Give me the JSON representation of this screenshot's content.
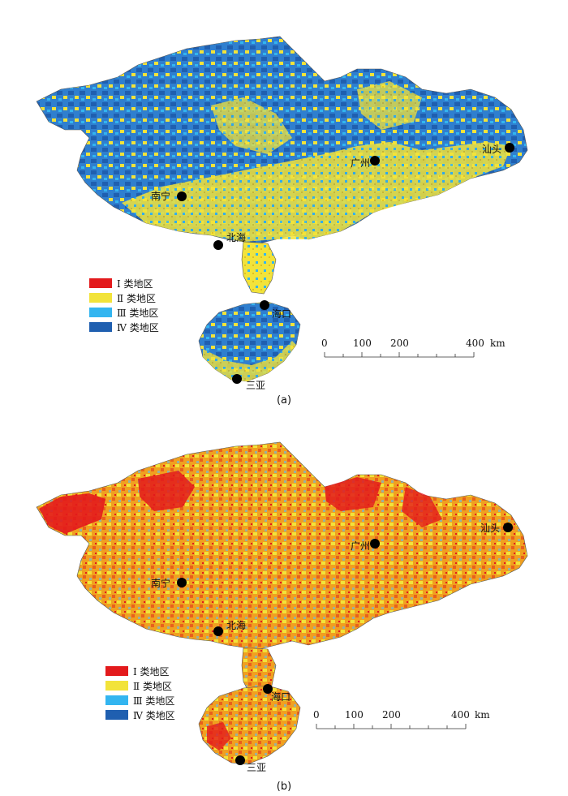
{
  "colors": {
    "class1": "#e31a1c",
    "class2": "#f2e33a",
    "class3": "#33b5f0",
    "class4": "#1f5fb0",
    "mix_b": "#f0a020"
  },
  "legend": [
    {
      "label": "Ⅰ 类地区",
      "color_key": "class1"
    },
    {
      "label": "Ⅱ 类地区",
      "color_key": "class2"
    },
    {
      "label": "Ⅲ 类地区",
      "color_key": "class3"
    },
    {
      "label": "Ⅳ 类地区",
      "color_key": "class4"
    }
  ],
  "cities": {
    "nanning": "南宁",
    "beihai": "北海",
    "guangzhou": "广州",
    "shantou": "汕头",
    "haikou": "海口",
    "sanya": "三亚"
  },
  "scale_bar": {
    "ticks": [
      "0",
      "100",
      "200",
      "400"
    ],
    "unit": "km"
  },
  "panels": [
    {
      "caption": "(a)",
      "dominant": "class4/class2 mix"
    },
    {
      "caption": "(b)",
      "dominant": "class1/class2 mix"
    }
  ]
}
